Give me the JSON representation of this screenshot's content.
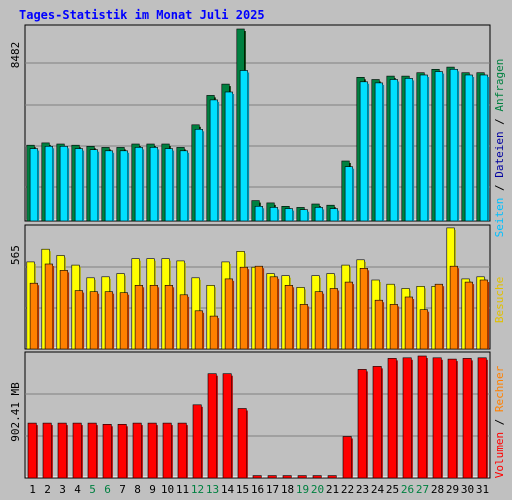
{
  "title": "Tages-Statistik im Monat Juli 2025",
  "colors": {
    "background": "#c0c0c0",
    "plot_background": "#c0c0c0",
    "title": "#0000ff",
    "anfragen": "#008040",
    "dateien": "#00e0ff",
    "seiten": "#00c0ff",
    "besuche": "#ffff00",
    "rechner": "#ff8000",
    "volumen": "#ff0000",
    "weekend_day": "#008040"
  },
  "chart_data": [
    {
      "type": "bar",
      "panel": "top",
      "max_label": "8482",
      "ylim": [
        0,
        8482
      ],
      "categories": [
        "1",
        "2",
        "3",
        "4",
        "5",
        "6",
        "7",
        "8",
        "9",
        "10",
        "11",
        "12",
        "13",
        "14",
        "15",
        "16",
        "17",
        "18",
        "19",
        "20",
        "21",
        "22",
        "23",
        "24",
        "25",
        "26",
        "27",
        "28",
        "29",
        "30",
        "31"
      ],
      "weekend_days": [
        "5",
        "6",
        "12",
        "13",
        "19",
        "20",
        "26",
        "27"
      ],
      "series": [
        {
          "name": "Anfragen",
          "values": [
            3350,
            3450,
            3400,
            3350,
            3300,
            3250,
            3250,
            3400,
            3400,
            3400,
            3250,
            4250,
            5550,
            6050,
            8482,
            900,
            800,
            650,
            600,
            750,
            700,
            2650,
            6350,
            6250,
            6400,
            6400,
            6550,
            6700,
            6800,
            6550,
            6550
          ]
        },
        {
          "name": "Dateien",
          "values": [
            3200,
            3300,
            3300,
            3200,
            3150,
            3100,
            3100,
            3250,
            3250,
            3200,
            3100,
            4050,
            5350,
            5700,
            6650,
            650,
            600,
            550,
            500,
            600,
            550,
            2400,
            6150,
            6100,
            6250,
            6300,
            6450,
            6600,
            6700,
            6450,
            6450
          ]
        }
      ],
      "legend": [
        "Anfragen",
        "Dateien",
        "Seiten"
      ]
    },
    {
      "type": "bar",
      "panel": "middle",
      "max_label": "565",
      "ylim": [
        0,
        565
      ],
      "categories": [
        "1",
        "2",
        "3",
        "4",
        "5",
        "6",
        "7",
        "8",
        "9",
        "10",
        "11",
        "12",
        "13",
        "14",
        "15",
        "16",
        "17",
        "18",
        "19",
        "20",
        "21",
        "22",
        "23",
        "24",
        "25",
        "26",
        "27",
        "28",
        "29",
        "30",
        "31"
      ],
      "series": [
        {
          "name": "Besuche",
          "values": [
            410,
            470,
            440,
            395,
            335,
            340,
            355,
            425,
            425,
            425,
            415,
            335,
            300,
            410,
            460,
            385,
            355,
            345,
            290,
            345,
            355,
            395,
            420,
            325,
            305,
            285,
            295,
            295,
            570,
            330,
            340
          ]
        },
        {
          "name": "Rechner",
          "values": [
            310,
            400,
            370,
            275,
            270,
            270,
            265,
            300,
            300,
            300,
            255,
            180,
            155,
            330,
            385,
            390,
            340,
            300,
            210,
            270,
            285,
            315,
            380,
            230,
            210,
            245,
            185,
            305,
            390,
            315,
            325
          ]
        }
      ],
      "legend": [
        "Besuche",
        "Rechner"
      ]
    },
    {
      "type": "bar",
      "panel": "bottom",
      "max_label": "902.41 MB",
      "ylim": [
        0,
        1000
      ],
      "categories": [
        "1",
        "2",
        "3",
        "4",
        "5",
        "6",
        "7",
        "8",
        "9",
        "10",
        "11",
        "12",
        "13",
        "14",
        "15",
        "16",
        "17",
        "18",
        "19",
        "20",
        "21",
        "22",
        "23",
        "24",
        "25",
        "26",
        "27",
        "28",
        "29",
        "30",
        "31"
      ],
      "series": [
        {
          "name": "Volumen",
          "values": [
            450,
            450,
            450,
            450,
            450,
            440,
            440,
            450,
            450,
            450,
            450,
            600,
            855,
            855,
            570,
            20,
            20,
            20,
            20,
            20,
            20,
            340,
            890,
            915,
            980,
            985,
            1000,
            985,
            975,
            980,
            985
          ]
        }
      ],
      "legend": [
        "Volumen",
        "Rechner",
        "Besuche"
      ]
    }
  ],
  "legend_side": {
    "middle_text": "Seiten / Dateien / Anfragen",
    "bottom_text": "Volumen / Rechner / Besuche"
  }
}
